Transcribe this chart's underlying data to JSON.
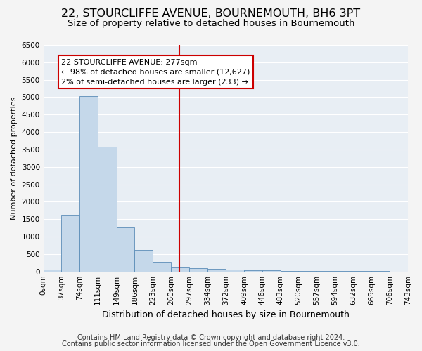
{
  "title": "22, STOURCLIFFE AVENUE, BOURNEMOUTH, BH6 3PT",
  "subtitle": "Size of property relative to detached houses in Bournemouth",
  "xlabel": "Distribution of detached houses by size in Bournemouth",
  "ylabel": "Number of detached properties",
  "footnote1": "Contains HM Land Registry data © Crown copyright and database right 2024.",
  "footnote2": "Contains public sector information licensed under the Open Government Licence v3.0.",
  "annotation_line1": "22 STOURCLIFFE AVENUE: 277sqm",
  "annotation_line2": "← 98% of detached houses are smaller (12,627)",
  "annotation_line3": "2% of semi-detached houses are larger (233) →",
  "bar_edges": [
    0,
    37,
    74,
    111,
    149,
    186,
    223,
    260,
    297,
    334,
    372,
    409,
    446,
    483,
    520,
    557,
    594,
    632,
    669,
    706,
    743
  ],
  "bar_heights": [
    50,
    1620,
    5020,
    3570,
    1270,
    620,
    280,
    120,
    100,
    70,
    50,
    30,
    25,
    20,
    15,
    10,
    8,
    5,
    4,
    3
  ],
  "bar_color": "#c5d8ea",
  "bar_edge_color": "#5b8db8",
  "vline_color": "#cc0000",
  "vline_x": 277,
  "ylim": [
    0,
    6500
  ],
  "yticks": [
    0,
    500,
    1000,
    1500,
    2000,
    2500,
    3000,
    3500,
    4000,
    4500,
    5000,
    5500,
    6000,
    6500
  ],
  "plot_bg_color": "#e8eef4",
  "fig_bg_color": "#f4f4f4",
  "grid_color": "#ffffff",
  "title_fontsize": 11.5,
  "subtitle_fontsize": 9.5,
  "xlabel_fontsize": 9,
  "ylabel_fontsize": 8,
  "tick_fontsize": 7.5,
  "annotation_fontsize": 8,
  "footnote_fontsize": 7
}
